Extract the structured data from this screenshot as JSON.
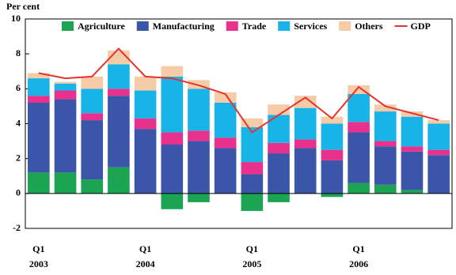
{
  "chart_data": {
    "type": "bar",
    "stacked": true,
    "y_label": "Per cent",
    "categories": [
      [
        "Q1",
        "2003"
      ],
      null,
      null,
      null,
      [
        "Q1",
        "2004"
      ],
      null,
      null,
      null,
      [
        "Q1",
        "2005"
      ],
      null,
      null,
      null,
      [
        "Q1",
        "2006"
      ],
      null,
      null,
      null
    ],
    "series": [
      {
        "name": "Agriculture",
        "color": "#1ba553",
        "values": [
          1.2,
          1.2,
          0.8,
          1.5,
          0,
          -0.9,
          -0.5,
          0,
          -1.0,
          -0.5,
          0,
          -0.2,
          0.6,
          0.5,
          0.2,
          0
        ]
      },
      {
        "name": "Manufacturing",
        "color": "#3b56a8",
        "values": [
          4.0,
          4.2,
          3.4,
          4.1,
          3.7,
          2.8,
          3.0,
          2.6,
          1.1,
          2.3,
          2.6,
          1.9,
          2.9,
          2.2,
          2.2,
          2.2
        ]
      },
      {
        "name": "Trade",
        "color": "#e8318c",
        "values": [
          0.4,
          0.5,
          0.4,
          0.4,
          0.6,
          0.7,
          0.6,
          0.6,
          0.7,
          0.6,
          0.5,
          0.6,
          0.6,
          0.3,
          0.3,
          0.3
        ]
      },
      {
        "name": "Services",
        "color": "#18b4e8",
        "values": [
          1.0,
          0.4,
          1.4,
          1.4,
          1.6,
          3.2,
          2.4,
          2.0,
          2.0,
          1.6,
          1.8,
          1.5,
          1.6,
          1.7,
          1.7,
          1.5
        ]
      },
      {
        "name": "Others",
        "color": "#f6cba7",
        "values": [
          0.3,
          0.1,
          0.7,
          0.8,
          0.8,
          0.6,
          0.5,
          0.6,
          0.5,
          0.6,
          0.7,
          0.4,
          0.5,
          0.4,
          0.3,
          0.2
        ]
      },
      {
        "name": "GDP",
        "type": "line",
        "color": "#e8322c",
        "values": [
          6.9,
          6.6,
          6.7,
          8.3,
          6.7,
          6.6,
          6.2,
          5.7,
          3.5,
          4.5,
          5.5,
          4.3,
          6.1,
          5.0,
          4.6,
          4.2
        ]
      }
    ],
    "ylim": [
      -2,
      10
    ],
    "yticks": [
      -2,
      0,
      2,
      4,
      6,
      8,
      10
    ],
    "legend": "top"
  }
}
